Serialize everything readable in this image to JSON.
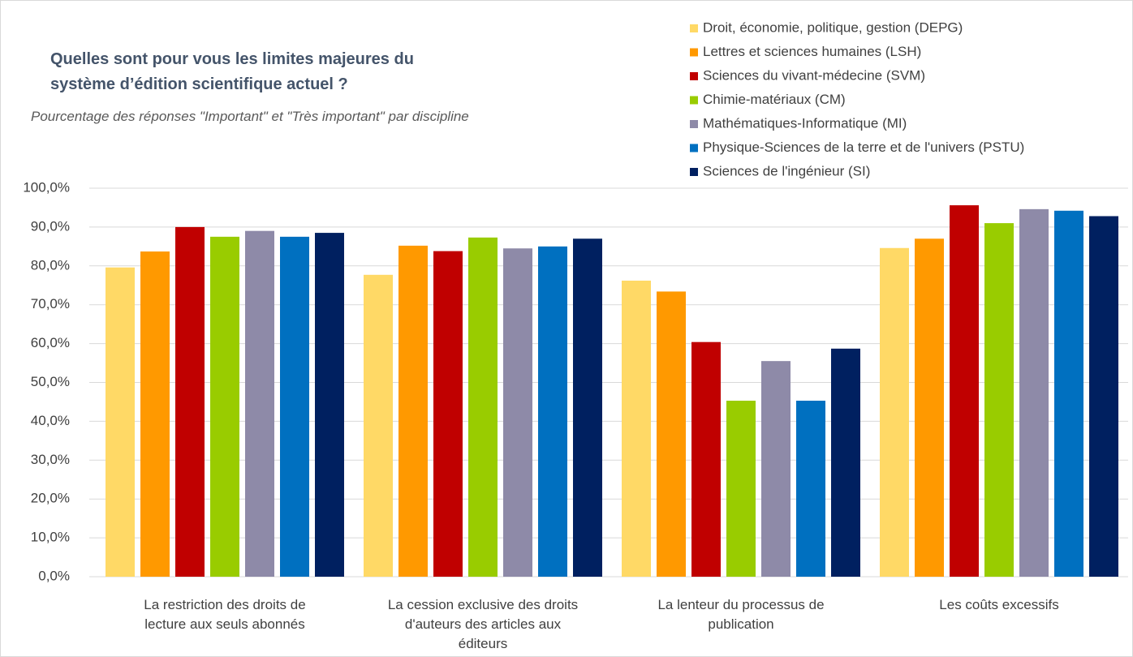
{
  "chart_data": {
    "type": "bar",
    "title": "Quelles sont pour vous les limites majeures du système d’édition scientifique actuel ?",
    "subtitle": "Pourcentage des réponses \"Important\" et \"Très important\" par discipline",
    "categories": [
      "La restriction des droits de lecture aux seuls abonnés",
      "La cession exclusive des droits d'auteurs des articles aux éditeurs",
      "La lenteur du processus de publication",
      "Les coûts excessifs"
    ],
    "series": [
      {
        "name": "Droit, économie, politique, gestion (DEPG)",
        "color": "#ffd966",
        "values": [
          79.6,
          77.7,
          76.2,
          84.6
        ]
      },
      {
        "name": "Lettres et sciences humaines (LSH)",
        "color": "#ff9900",
        "values": [
          83.7,
          85.2,
          73.4,
          87.0
        ]
      },
      {
        "name": "Sciences du vivant-médecine (SVM)",
        "color": "#c00000",
        "values": [
          90.0,
          83.8,
          60.4,
          95.6
        ]
      },
      {
        "name": "Chimie-matériaux (CM)",
        "color": "#99cc00",
        "values": [
          87.5,
          87.3,
          45.3,
          91.0
        ]
      },
      {
        "name": "Mathématiques-Informatique (MI)",
        "color": "#8e8aa8",
        "values": [
          89.0,
          84.5,
          55.5,
          94.6
        ]
      },
      {
        "name": "Physique-Sciences de la terre et de l'univers (PSTU)",
        "color": "#0070c0",
        "values": [
          87.5,
          85.0,
          45.3,
          94.2
        ]
      },
      {
        "name": "Sciences de l'ingénieur (SI)",
        "color": "#002060",
        "values": [
          88.5,
          87.0,
          58.7,
          92.8
        ]
      }
    ],
    "ylim": [
      0,
      100
    ],
    "yticks": [
      {
        "value": 0,
        "label": "0,0%"
      },
      {
        "value": 10,
        "label": "10,0%"
      },
      {
        "value": 20,
        "label": "20,0%"
      },
      {
        "value": 30,
        "label": "30,0%"
      },
      {
        "value": 40,
        "label": "40,0%"
      },
      {
        "value": 50,
        "label": "50,0%"
      },
      {
        "value": 60,
        "label": "60,0%"
      },
      {
        "value": 70,
        "label": "70,0%"
      },
      {
        "value": 80,
        "label": "80,0%"
      },
      {
        "value": 90,
        "label": "90,0%"
      },
      {
        "value": 100,
        "label": "100,0%"
      }
    ],
    "grid": true,
    "legend": "top-right"
  }
}
